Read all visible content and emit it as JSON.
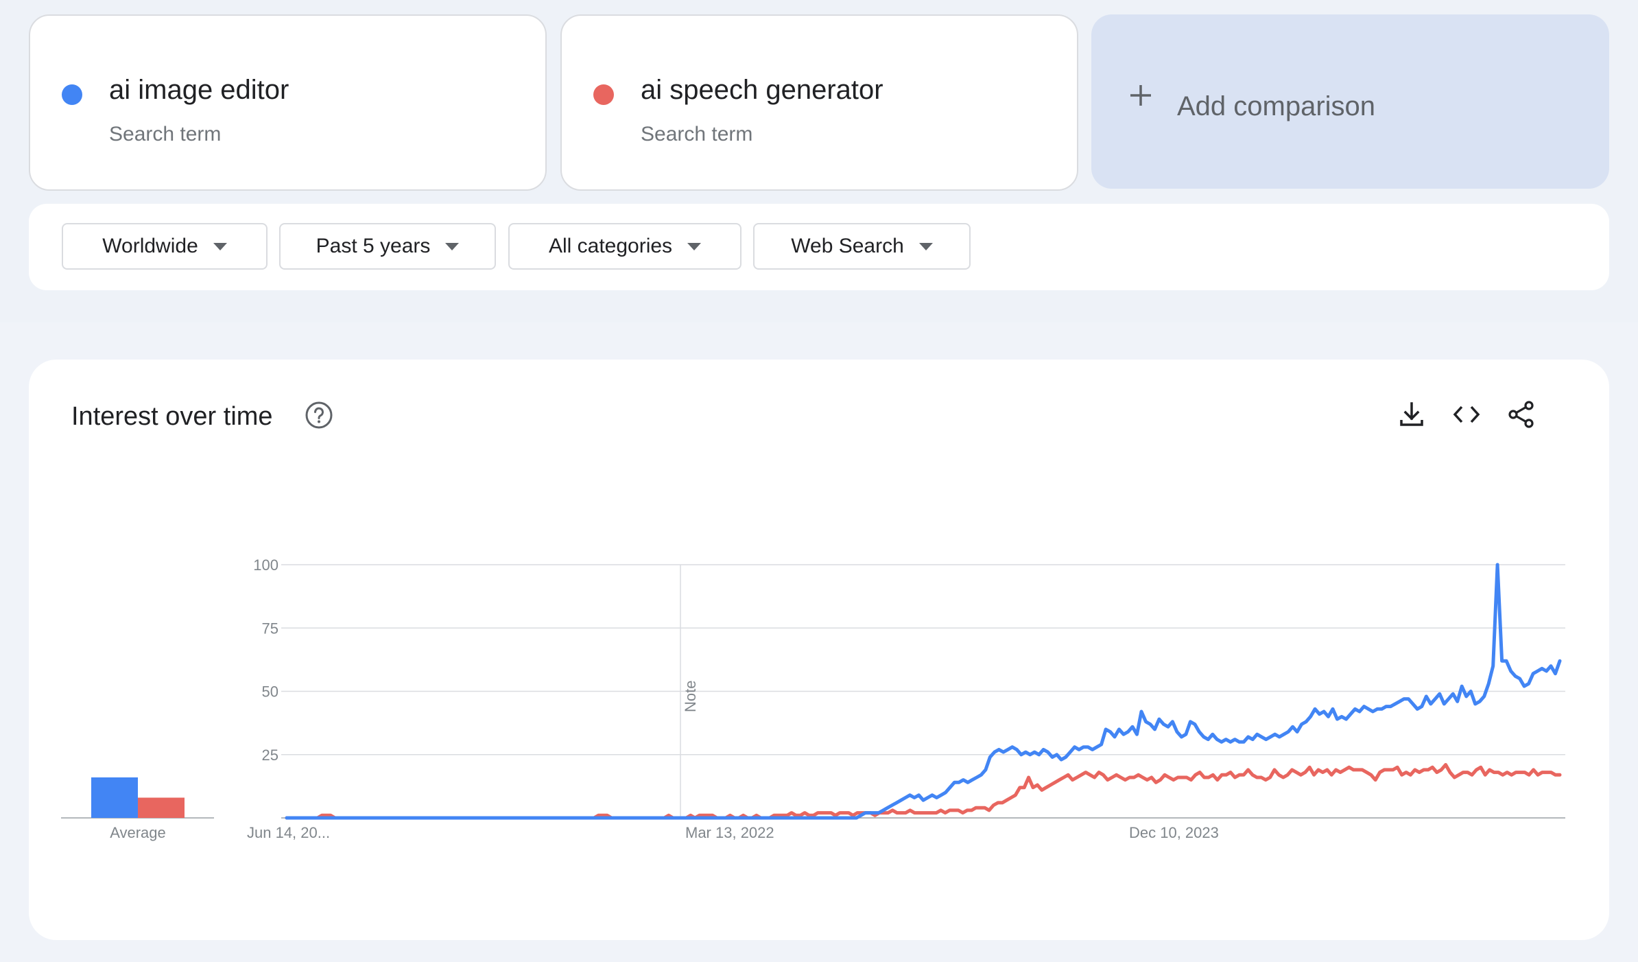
{
  "terms": [
    {
      "label": "ai image editor",
      "sub": "Search term",
      "color": "#4285f4"
    },
    {
      "label": "ai speech generator",
      "sub": "Search term",
      "color": "#e8665f"
    }
  ],
  "add_comparison": {
    "label": "Add comparison",
    "icon": "plus-icon"
  },
  "filters": {
    "region": "Worldwide",
    "time": "Past 5 years",
    "category": "All categories",
    "property": "Web Search"
  },
  "chart_section": {
    "title": "Interest over time",
    "icons": [
      "help-icon",
      "download-icon",
      "embed-code-icon",
      "share-icon"
    ]
  },
  "chart_data": {
    "type": "line",
    "title": "",
    "xlabel": "",
    "ylabel": "",
    "ylim": [
      0,
      100
    ],
    "yticks": [
      "100",
      "75",
      "50",
      "25"
    ],
    "x_tick_labels": [
      "Jun 14, 20...",
      "Mar 13, 2022",
      "Dec 10, 2023"
    ],
    "note_label": "Note",
    "grid": true,
    "average": {
      "label": "Average",
      "values": [
        16,
        8
      ]
    },
    "series": [
      {
        "name": "ai image editor",
        "color": "#4285f4",
        "values": [
          0,
          0,
          0,
          0,
          0,
          0,
          0,
          0,
          0,
          0,
          0,
          0,
          0,
          0,
          0,
          0,
          0,
          0,
          0,
          0,
          0,
          0,
          0,
          0,
          0,
          0,
          0,
          0,
          0,
          0,
          0,
          0,
          0,
          0,
          0,
          0,
          0,
          0,
          0,
          0,
          0,
          0,
          0,
          0,
          0,
          0,
          0,
          0,
          0,
          0,
          0,
          0,
          0,
          0,
          0,
          0,
          0,
          0,
          0,
          0,
          0,
          0,
          0,
          0,
          0,
          0,
          0,
          0,
          0,
          0,
          0,
          0,
          0,
          0,
          0,
          0,
          0,
          0,
          0,
          0,
          0,
          0,
          0,
          0,
          0,
          0,
          0,
          0,
          0,
          0,
          0,
          0,
          0,
          0,
          0,
          0,
          0,
          0,
          0,
          0,
          0,
          0,
          0,
          0,
          0,
          0,
          0,
          0,
          0,
          0,
          0,
          0,
          0,
          0,
          0,
          0,
          0,
          0,
          0,
          0,
          0,
          0,
          0,
          0,
          0,
          0,
          0,
          0,
          0,
          1,
          2,
          2,
          2,
          2,
          3,
          4,
          5,
          6,
          7,
          8,
          9,
          8,
          9,
          7,
          8,
          9,
          8,
          9,
          10,
          12,
          14,
          14,
          15,
          14,
          15,
          16,
          17,
          19,
          24,
          26,
          27,
          26,
          27,
          28,
          27,
          25,
          26,
          25,
          26,
          25,
          27,
          26,
          24,
          25,
          23,
          24,
          26,
          28,
          27,
          28,
          28,
          27,
          28,
          29,
          35,
          34,
          32,
          35,
          33,
          34,
          36,
          33,
          42,
          38,
          37,
          35,
          39,
          37,
          36,
          38,
          34,
          32,
          33,
          38,
          37,
          34,
          32,
          31,
          33,
          31,
          30,
          31,
          30,
          31,
          30,
          30,
          32,
          31,
          33,
          32,
          31,
          32,
          33,
          32,
          33,
          34,
          36,
          34,
          37,
          38,
          40,
          43,
          41,
          42,
          40,
          43,
          39,
          40,
          39,
          41,
          43,
          42,
          44,
          43,
          42,
          43,
          43,
          44,
          44,
          45,
          46,
          47,
          47,
          45,
          43,
          44,
          48,
          45,
          47,
          49,
          45,
          47,
          49,
          46,
          52,
          48,
          50,
          45,
          46,
          48,
          53,
          60,
          100,
          62,
          62,
          58,
          56,
          55,
          52,
          53,
          57,
          58,
          59,
          58,
          60,
          57,
          62
        ]
      },
      {
        "name": "ai speech generator",
        "color": "#e8665f",
        "values": [
          0,
          0,
          0,
          0,
          0,
          0,
          0,
          0,
          1,
          1,
          1,
          0,
          0,
          0,
          0,
          0,
          0,
          0,
          0,
          0,
          0,
          0,
          0,
          0,
          0,
          0,
          0,
          0,
          0,
          0,
          0,
          0,
          0,
          0,
          0,
          0,
          0,
          0,
          0,
          0,
          0,
          0,
          0,
          0,
          0,
          0,
          0,
          0,
          0,
          0,
          0,
          0,
          0,
          0,
          0,
          0,
          0,
          0,
          0,
          0,
          0,
          0,
          0,
          0,
          0,
          0,
          0,
          0,
          0,
          0,
          0,
          1,
          1,
          1,
          0,
          0,
          0,
          0,
          0,
          0,
          0,
          0,
          0,
          0,
          0,
          0,
          0,
          1,
          0,
          0,
          0,
          0,
          1,
          0,
          1,
          1,
          1,
          1,
          0,
          0,
          0,
          1,
          0,
          0,
          1,
          0,
          0,
          1,
          0,
          0,
          0,
          1,
          1,
          1,
          1,
          2,
          1,
          1,
          2,
          1,
          1,
          2,
          2,
          2,
          2,
          1,
          2,
          2,
          2,
          1,
          2,
          2,
          2,
          2,
          1,
          2,
          2,
          2,
          3,
          2,
          2,
          2,
          3,
          2,
          2,
          2,
          2,
          2,
          2,
          3,
          2,
          3,
          3,
          3,
          2,
          3,
          3,
          4,
          4,
          4,
          3,
          5,
          6,
          6,
          7,
          8,
          9,
          12,
          12,
          16,
          12,
          13,
          11,
          12,
          13,
          14,
          15,
          16,
          17,
          15,
          16,
          17,
          18,
          17,
          16,
          18,
          17,
          15,
          16,
          17,
          16,
          15,
          16,
          16,
          17,
          16,
          15,
          16,
          14,
          15,
          17,
          16,
          15,
          16,
          16,
          16,
          15,
          17,
          18,
          16,
          16,
          17,
          15,
          17,
          17,
          18,
          16,
          17,
          17,
          19,
          17,
          16,
          16,
          15,
          16,
          19,
          17,
          16,
          17,
          19,
          18,
          17,
          18,
          20,
          17,
          19,
          18,
          19,
          17,
          19,
          18,
          19,
          20,
          19,
          19,
          19,
          18,
          17,
          15,
          18,
          19,
          19,
          19,
          20,
          17,
          18,
          17,
          19,
          18,
          19,
          19,
          20,
          18,
          19,
          21,
          18,
          16,
          17,
          18,
          18,
          17,
          19,
          20,
          17,
          19,
          18,
          18,
          17,
          18,
          17,
          18,
          18,
          18,
          17,
          19,
          17,
          18,
          18,
          18,
          17,
          17
        ]
      }
    ]
  }
}
